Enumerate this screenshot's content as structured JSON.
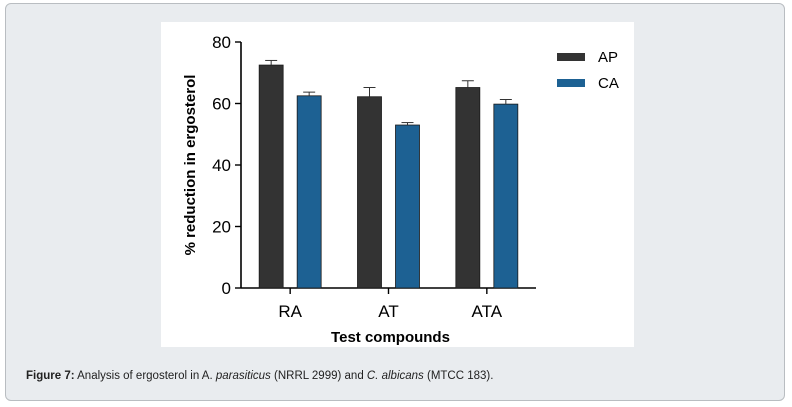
{
  "chart_data": {
    "type": "bar",
    "title": "",
    "xlabel": "Test compounds",
    "ylabel": "% reduction in ergosterol",
    "categories": [
      "RA",
      "AT",
      "ATA"
    ],
    "ylim": [
      0,
      80
    ],
    "yticks": [
      "0",
      "20",
      "40",
      "60",
      "80"
    ],
    "grid": false,
    "legend_position": "top-right",
    "series": [
      {
        "name": "AP",
        "color": "#333333",
        "values": [
          72.5,
          62.2,
          65.2
        ],
        "errors": [
          1.5,
          3.0,
          2.2
        ]
      },
      {
        "name": "CA",
        "color": "#1d6193",
        "values": [
          62.5,
          53.0,
          59.8
        ],
        "errors": [
          1.2,
          0.8,
          1.5
        ]
      }
    ]
  },
  "caption": {
    "label": "Figure 7:",
    "t1": " Analysis of ergosterol in A. ",
    "i1": "parasiticus",
    "t2": " (NRRL 2999) and ",
    "i2": "C. albicans",
    "t3": " (MTCC 183)."
  }
}
